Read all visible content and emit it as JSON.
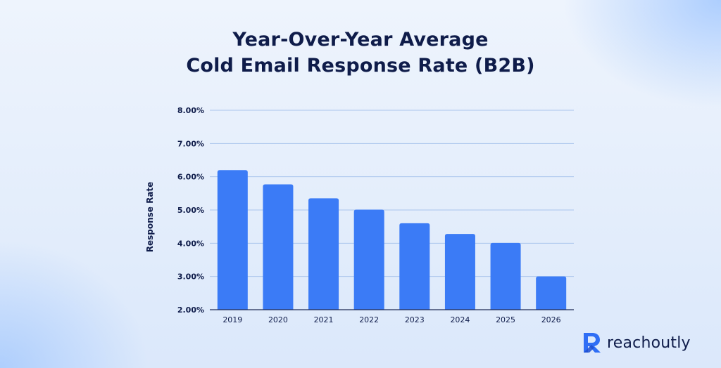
{
  "title_line1": "Year-Over-Year Average",
  "title_line2": "Cold Email Response Rate (B2B)",
  "brand": {
    "name": "reachoutly",
    "mark_color": "#2f6ef5"
  },
  "chart_data": {
    "type": "bar",
    "categories": [
      "2019",
      "2020",
      "2021",
      "2022",
      "2023",
      "2024",
      "2025",
      "2026"
    ],
    "values": [
      6.2,
      5.77,
      5.35,
      5.01,
      4.6,
      4.28,
      4.01,
      3.0
    ],
    "unit": "%",
    "xlabel": "",
    "ylabel": "Response Rate",
    "ylim": [
      2,
      8
    ],
    "yticks": [
      "2.00%",
      "3.00%",
      "4.00%",
      "5.00%",
      "6.00%",
      "7.00%",
      "8.00%"
    ],
    "grid": true,
    "bar_color": "#3b7bf6",
    "grid_color": "#a9c4ec"
  }
}
